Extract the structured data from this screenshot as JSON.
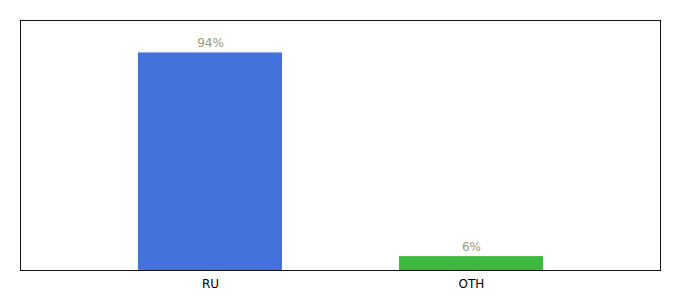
{
  "chart_data": {
    "type": "bar",
    "categories": [
      "RU",
      "OTH"
    ],
    "values": [
      94,
      6
    ],
    "value_labels": [
      "94%",
      "6%"
    ],
    "colors": [
      "#4472db",
      "#3cb83c"
    ],
    "ylim": [
      0,
      108
    ],
    "data_labels": true,
    "tick_labels": "x"
  }
}
